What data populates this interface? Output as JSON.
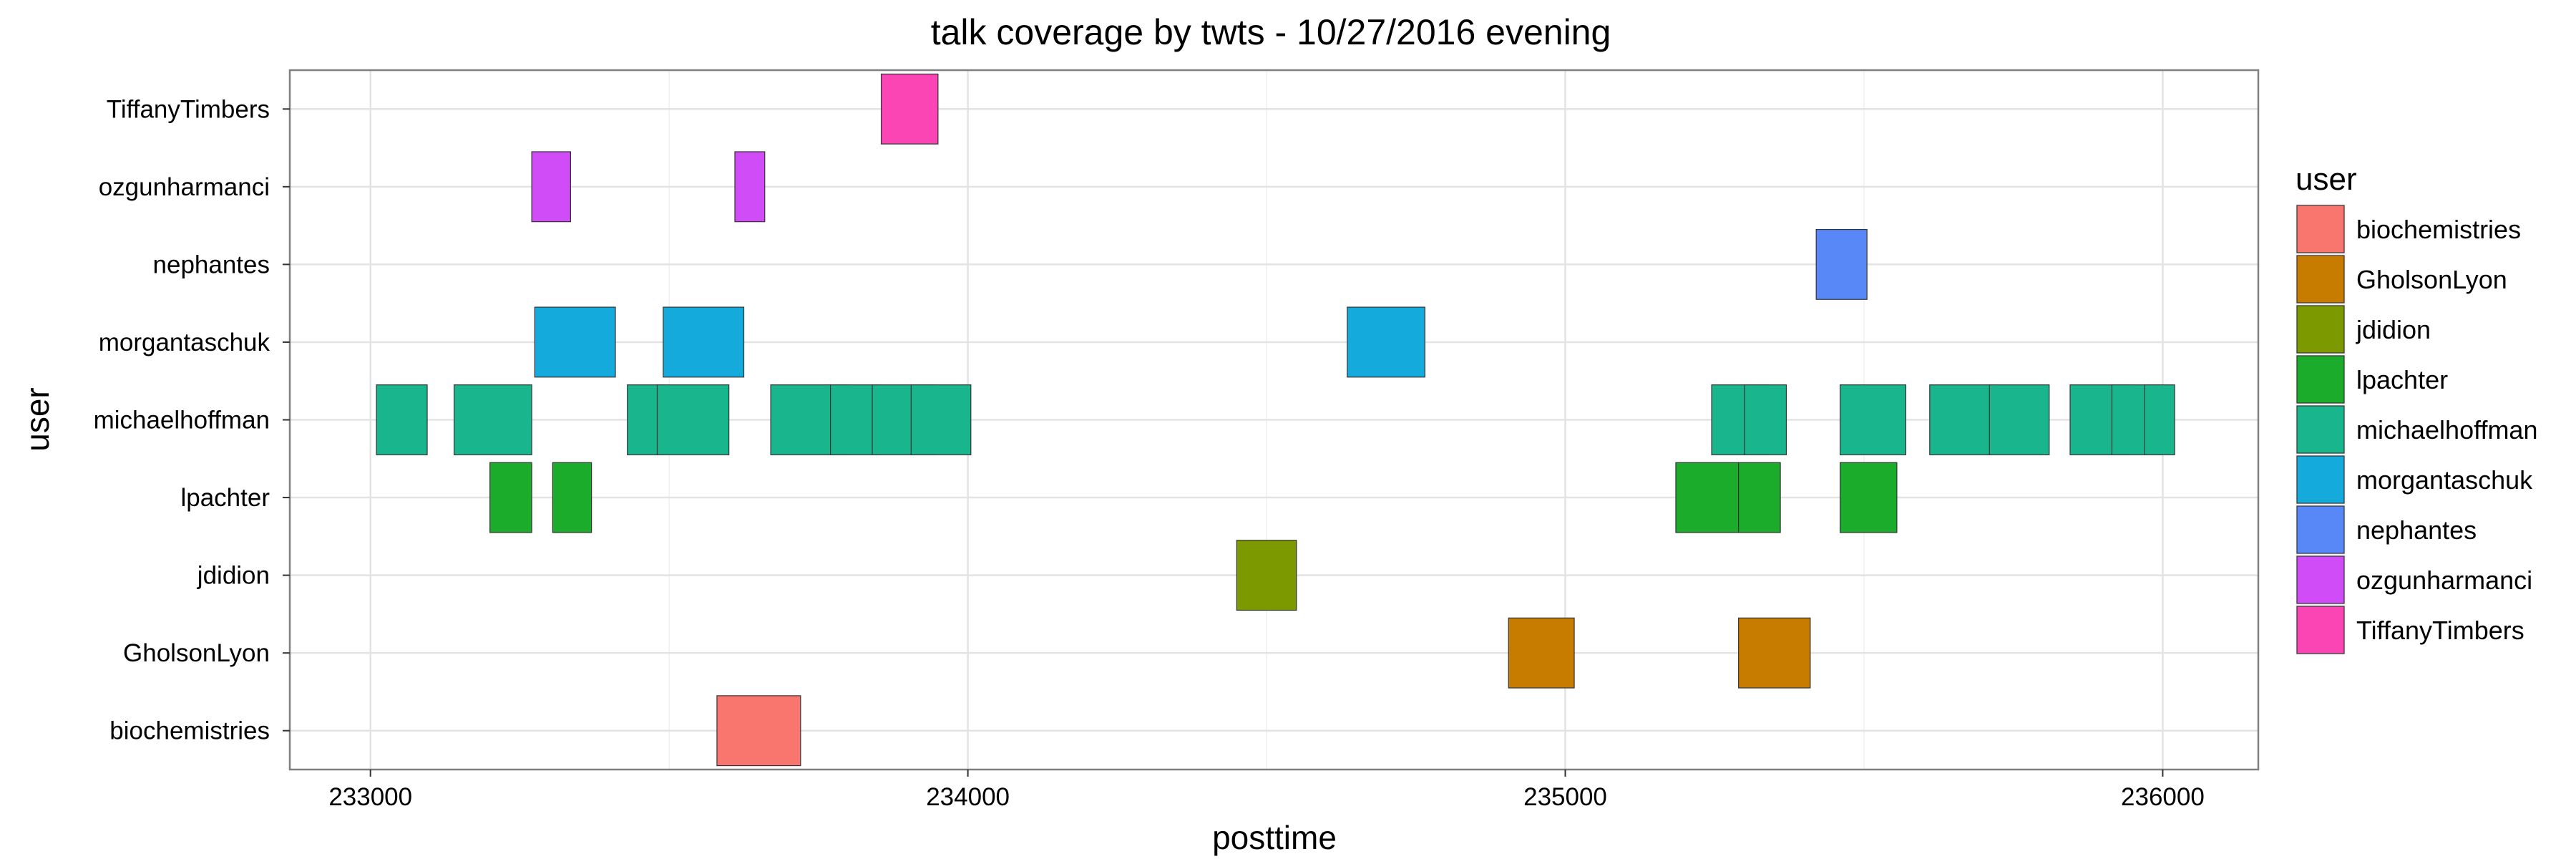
{
  "chart_data": {
    "type": "timeline",
    "title": "talk coverage by twts - 10/27/2016 evening",
    "xlabel": "posttime",
    "ylabel": "user",
    "xlim": [
      232865,
      236160
    ],
    "x_ticks": [
      233000,
      234000,
      235000,
      236000
    ],
    "x_tick_labels": [
      "233000",
      "234000",
      "235000",
      "236000"
    ],
    "categories": [
      "biochemistries",
      "GholsonLyon",
      "jdidion",
      "lpachter",
      "michaelhoffman",
      "morgantaschuk",
      "nephantes",
      "ozgunharmanci",
      "TiffanyTimbers"
    ],
    "grid": true,
    "legend": {
      "title": "user",
      "position": "right"
    },
    "colors": {
      "biochemistries": "#F8766D",
      "GholsonLyon": "#C77C00",
      "jdidion": "#7C9A00",
      "lpachter": "#1CAC2B",
      "michaelhoffman": "#19B68D",
      "morgantaschuk": "#14ABDC",
      "nephantes": "#5888F7",
      "ozgunharmanci": "#D04CF6",
      "TiffanyTimbers": "#FB45B4"
    },
    "series": [
      {
        "name": "biochemistries",
        "intervals": [
          [
            233580,
            233720
          ]
        ]
      },
      {
        "name": "GholsonLyon",
        "intervals": [
          [
            234905,
            235015
          ],
          [
            235290,
            235410
          ]
        ]
      },
      {
        "name": "jdidion",
        "intervals": [
          [
            234450,
            234550
          ]
        ]
      },
      {
        "name": "lpachter",
        "intervals": [
          [
            233200,
            233270
          ],
          [
            233305,
            233370
          ],
          [
            235185,
            235290
          ],
          [
            235290,
            235360
          ],
          [
            235460,
            235555
          ]
        ]
      },
      {
        "name": "michaelhoffman",
        "intervals": [
          [
            233010,
            233095
          ],
          [
            233140,
            233270
          ],
          [
            233430,
            233490
          ],
          [
            233480,
            233600
          ],
          [
            233670,
            233800
          ],
          [
            233770,
            233850
          ],
          [
            233840,
            233945
          ],
          [
            233905,
            234005
          ],
          [
            235245,
            235340
          ],
          [
            235300,
            235370
          ],
          [
            235460,
            235570
          ],
          [
            235610,
            235715
          ],
          [
            235710,
            235810
          ],
          [
            235845,
            235945
          ],
          [
            235915,
            236000
          ],
          [
            235970,
            236020
          ]
        ]
      },
      {
        "name": "morgantaschuk",
        "intervals": [
          [
            233275,
            233410
          ],
          [
            233490,
            233625
          ],
          [
            234635,
            234765
          ]
        ]
      },
      {
        "name": "nephantes",
        "intervals": [
          [
            235420,
            235505
          ]
        ]
      },
      {
        "name": "ozgunharmanci",
        "intervals": [
          [
            233270,
            233335
          ],
          [
            233610,
            233660
          ]
        ]
      },
      {
        "name": "TiffanyTimbers",
        "intervals": [
          [
            233855,
            233950
          ]
        ]
      }
    ]
  }
}
